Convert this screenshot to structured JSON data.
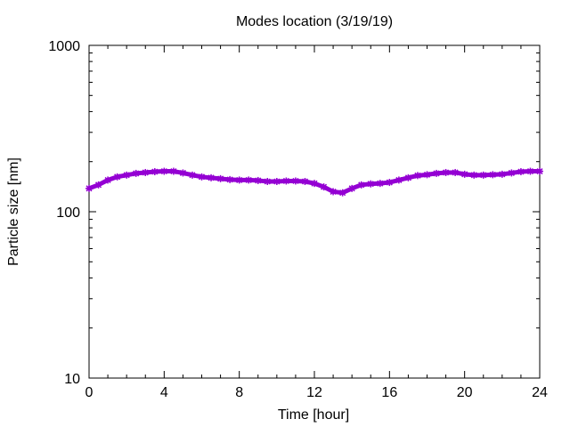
{
  "chart_data": {
    "type": "line",
    "title": "Modes location (3/19/19)",
    "xlabel": "Time [hour]",
    "ylabel": "Particle size [nm]",
    "xlim": [
      0,
      24
    ],
    "ylim": [
      10,
      1000
    ],
    "yscale": "log",
    "x_ticks": [
      0,
      4,
      8,
      12,
      16,
      20,
      24
    ],
    "y_ticks": [
      10,
      100,
      1000
    ],
    "grid": false,
    "series": [
      {
        "color": "#9400d3",
        "x": [
          0,
          0.5,
          1,
          1.5,
          2,
          2.5,
          3,
          3.5,
          4,
          4.5,
          5,
          5.5,
          6,
          6.5,
          7,
          7.5,
          8,
          8.5,
          9,
          9.5,
          10,
          10.5,
          11,
          11.5,
          12,
          12.5,
          13,
          13.5,
          14,
          14.5,
          15,
          15.5,
          16,
          16.5,
          17,
          17.5,
          18,
          18.5,
          19,
          19.5,
          20,
          20.5,
          21,
          21.5,
          22,
          22.5,
          23,
          23.5,
          24
        ],
        "y": [
          138,
          145,
          155,
          162,
          166,
          170,
          172,
          174,
          175,
          175,
          171,
          166,
          162,
          160,
          158,
          156,
          155,
          155,
          154,
          152,
          152,
          153,
          153,
          152,
          148,
          141,
          132,
          130,
          138,
          145,
          147,
          148,
          150,
          155,
          160,
          165,
          167,
          170,
          172,
          172,
          168,
          166,
          166,
          167,
          168,
          171,
          174,
          175,
          175
        ]
      }
    ]
  }
}
